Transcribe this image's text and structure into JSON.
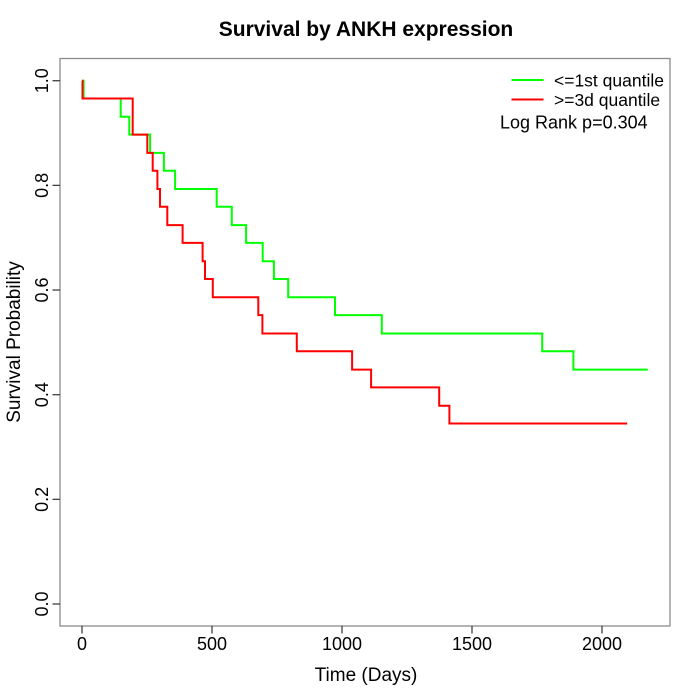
{
  "chart_data": {
    "type": "line",
    "subtype": "kaplan-meier-step",
    "title": "Survival by ANKH expression",
    "xlabel": "Time (Days)",
    "ylabel": "Survival Probability",
    "xlim": [
      0,
      2270
    ],
    "ylim": [
      0.0,
      1.0
    ],
    "grid": "off",
    "legend_position": "top-right",
    "annotation": "Log Rank p=0.304",
    "x_ticks": [
      {
        "label": "0",
        "value": 0
      },
      {
        "label": "500",
        "value": 500
      },
      {
        "label": "1000",
        "value": 1000
      },
      {
        "label": "1500",
        "value": 1500
      },
      {
        "label": "2000",
        "value": 2000
      }
    ],
    "y_ticks": [
      {
        "label": "0.0",
        "value": 0.0
      },
      {
        "label": "0.2",
        "value": 0.2
      },
      {
        "label": "0.4",
        "value": 0.4
      },
      {
        "label": "0.6",
        "value": 0.6
      },
      {
        "label": "0.8",
        "value": 0.8
      },
      {
        "label": "1.0",
        "value": 1.0
      }
    ],
    "series": [
      {
        "name": "<=1st quantile",
        "color": "#00ff00",
        "end_time": 2176,
        "points": [
          [
            0,
            1.0
          ],
          [
            6,
            0.966
          ],
          [
            149,
            0.931
          ],
          [
            182,
            0.897
          ],
          [
            262,
            0.862
          ],
          [
            315,
            0.828
          ],
          [
            358,
            0.793
          ],
          [
            518,
            0.759
          ],
          [
            576,
            0.724
          ],
          [
            631,
            0.69
          ],
          [
            695,
            0.655
          ],
          [
            738,
            0.621
          ],
          [
            793,
            0.586
          ],
          [
            973,
            0.552
          ],
          [
            1153,
            0.517
          ],
          [
            1770,
            0.483
          ],
          [
            1890,
            0.448
          ]
        ]
      },
      {
        "name": ">=3d quantile",
        "color": "#ff0000",
        "end_time": 2097,
        "points": [
          [
            0,
            1.0
          ],
          [
            2,
            0.966
          ],
          [
            195,
            0.897
          ],
          [
            251,
            0.862
          ],
          [
            272,
            0.828
          ],
          [
            290,
            0.793
          ],
          [
            300,
            0.759
          ],
          [
            328,
            0.724
          ],
          [
            387,
            0.69
          ],
          [
            464,
            0.655
          ],
          [
            473,
            0.621
          ],
          [
            503,
            0.586
          ],
          [
            678,
            0.552
          ],
          [
            694,
            0.517
          ],
          [
            826,
            0.483
          ],
          [
            1039,
            0.448
          ],
          [
            1112,
            0.414
          ],
          [
            1374,
            0.379
          ],
          [
            1413,
            0.345
          ]
        ]
      }
    ]
  }
}
